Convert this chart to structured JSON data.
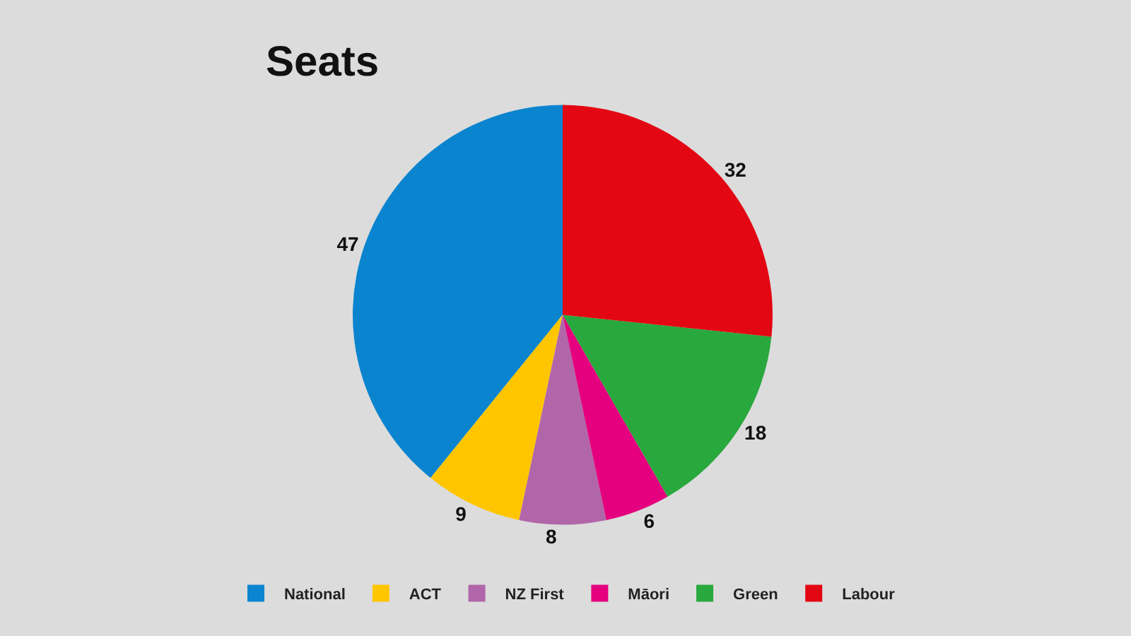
{
  "chart_data": {
    "type": "pie",
    "title": "Seats",
    "categories": [
      "National",
      "ACT",
      "NZ First",
      "Māori",
      "Green",
      "Labour"
    ],
    "values": [
      47,
      9,
      8,
      6,
      18,
      32
    ],
    "colors": [
      "#0a84cf",
      "#ffc600",
      "#b166a9",
      "#e4007e",
      "#29a83d",
      "#e30613"
    ],
    "data_labels": true,
    "legend": "bottom"
  }
}
